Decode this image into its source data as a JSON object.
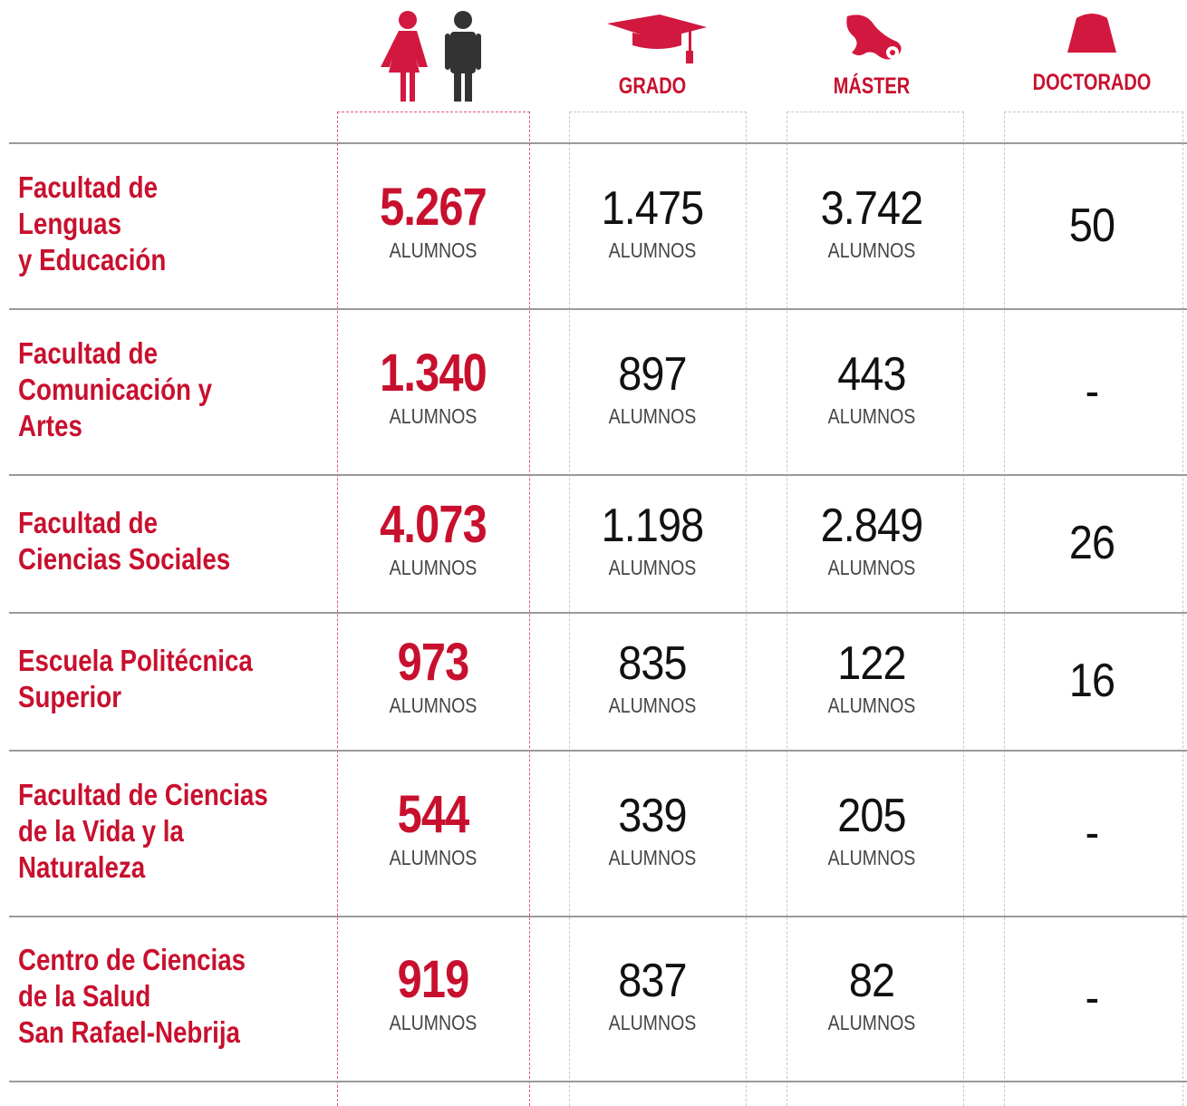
{
  "header": {
    "columns": [
      "GRADO",
      "MÁSTER",
      "DOCTORADO"
    ]
  },
  "unit": "ALUMNOS",
  "rows": [
    {
      "label": [
        "Facultad de",
        "Lenguas",
        "y Educación"
      ],
      "total": "5.267",
      "grado": "1.475",
      "master": "3.742",
      "doctorado": "50"
    },
    {
      "label": [
        "Facultad de",
        "Comunicación y",
        "Artes"
      ],
      "total": "1.340",
      "grado": "897",
      "master": "443",
      "doctorado": "-"
    },
    {
      "label": [
        "Facultad de",
        "Ciencias Sociales"
      ],
      "total": "4.073",
      "grado": "1.198",
      "master": "2.849",
      "doctorado": "26"
    },
    {
      "label": [
        "Escuela Politécnica",
        "Superior"
      ],
      "total": "973",
      "grado": "835",
      "master": "122",
      "doctorado": "16"
    },
    {
      "label": [
        "Facultad de Ciencias",
        "de la Vida y la",
        "Naturaleza"
      ],
      "total": "544",
      "grado": "339",
      "master": "205",
      "doctorado": "-"
    },
    {
      "label": [
        "Centro de Ciencias",
        "de la Salud",
        "San Rafael-Nebrija"
      ],
      "total": "919",
      "grado": "837",
      "master": "82",
      "doctorado": "-"
    }
  ]
}
